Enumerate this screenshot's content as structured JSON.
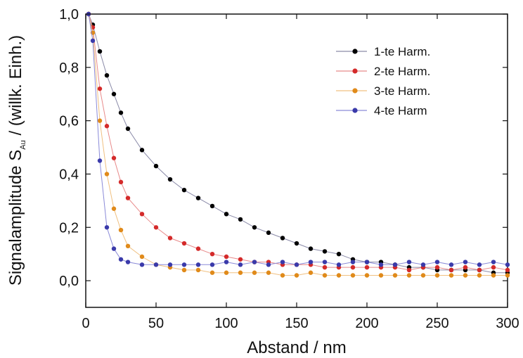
{
  "chart_data": {
    "type": "scatter",
    "title": "",
    "xlabel": "Abstand / nm",
    "ylabel_main": "Signalamplitude S",
    "ylabel_sub": "Au",
    "ylabel_rest": " / (willk. Einh.)",
    "xlim": [
      0,
      300
    ],
    "ylim": [
      -0.1,
      1.0
    ],
    "x_ticks": [
      {
        "value": 0,
        "label": "0"
      },
      {
        "value": 50,
        "label": "50"
      },
      {
        "value": 100,
        "label": "100"
      },
      {
        "value": 150,
        "label": "150"
      },
      {
        "value": 200,
        "label": "200"
      },
      {
        "value": 250,
        "label": "250"
      },
      {
        "value": 300,
        "label": "300"
      }
    ],
    "y_ticks": [
      {
        "value": 0.0,
        "label": "0,0"
      },
      {
        "value": 0.2,
        "label": "0,2"
      },
      {
        "value": 0.4,
        "label": "0,4"
      },
      {
        "value": 0.6,
        "label": "0,6"
      },
      {
        "value": 0.8,
        "label": "0,8"
      },
      {
        "value": 1.0,
        "label": "1,0"
      }
    ],
    "grid": false,
    "legend_position": "top-right",
    "series": [
      {
        "name": "1-te Harm.",
        "marker_color": "#000000",
        "line_color": "#8a8aa8",
        "x": [
          2,
          5,
          10,
          15,
          20,
          25,
          30,
          40,
          50,
          60,
          70,
          80,
          90,
          100,
          110,
          120,
          130,
          140,
          150,
          160,
          170,
          180,
          190,
          200,
          210,
          220,
          230,
          240,
          250,
          260,
          270,
          280,
          290,
          300
        ],
        "y": [
          1.0,
          0.96,
          0.86,
          0.77,
          0.7,
          0.63,
          0.57,
          0.49,
          0.43,
          0.38,
          0.34,
          0.31,
          0.28,
          0.25,
          0.23,
          0.2,
          0.18,
          0.16,
          0.14,
          0.12,
          0.11,
          0.1,
          0.08,
          0.07,
          0.07,
          0.06,
          0.05,
          0.05,
          0.04,
          0.04,
          0.04,
          0.04,
          0.03,
          0.03
        ]
      },
      {
        "name": "2-te Harm.",
        "marker_color": "#d42a2a",
        "line_color": "#e88a8a",
        "x": [
          2,
          5,
          10,
          15,
          20,
          25,
          30,
          40,
          50,
          60,
          70,
          80,
          90,
          100,
          110,
          120,
          130,
          140,
          150,
          160,
          170,
          180,
          190,
          200,
          210,
          220,
          230,
          240,
          250,
          260,
          270,
          280,
          290,
          300
        ],
        "y": [
          1.0,
          0.95,
          0.72,
          0.58,
          0.46,
          0.37,
          0.31,
          0.25,
          0.2,
          0.16,
          0.14,
          0.12,
          0.1,
          0.09,
          0.08,
          0.07,
          0.07,
          0.06,
          0.06,
          0.06,
          0.05,
          0.05,
          0.05,
          0.05,
          0.05,
          0.05,
          0.04,
          0.05,
          0.05,
          0.04,
          0.05,
          0.04,
          0.05,
          0.04
        ]
      },
      {
        "name": "3-te Harm.",
        "marker_color": "#e08a1a",
        "line_color": "#f0c080",
        "x": [
          2,
          5,
          10,
          15,
          20,
          25,
          30,
          40,
          50,
          60,
          70,
          80,
          90,
          100,
          110,
          120,
          130,
          140,
          150,
          160,
          170,
          180,
          190,
          200,
          210,
          220,
          230,
          240,
          250,
          260,
          270,
          280,
          290,
          300
        ],
        "y": [
          1.0,
          0.93,
          0.6,
          0.4,
          0.27,
          0.19,
          0.13,
          0.09,
          0.06,
          0.05,
          0.04,
          0.04,
          0.03,
          0.03,
          0.03,
          0.03,
          0.03,
          0.02,
          0.02,
          0.03,
          0.02,
          0.02,
          0.02,
          0.02,
          0.02,
          0.02,
          0.02,
          0.02,
          0.02,
          0.02,
          0.02,
          0.02,
          0.02,
          0.02
        ]
      },
      {
        "name": "4-te Harm",
        "marker_color": "#3a3aaa",
        "line_color": "#8a8ad8",
        "x": [
          2,
          5,
          10,
          15,
          20,
          25,
          30,
          40,
          50,
          60,
          70,
          80,
          90,
          100,
          110,
          120,
          130,
          140,
          150,
          160,
          170,
          180,
          190,
          200,
          210,
          220,
          230,
          240,
          250,
          260,
          270,
          280,
          290,
          300
        ],
        "y": [
          1.0,
          0.9,
          0.45,
          0.2,
          0.12,
          0.08,
          0.07,
          0.06,
          0.06,
          0.06,
          0.06,
          0.06,
          0.06,
          0.07,
          0.06,
          0.07,
          0.06,
          0.07,
          0.06,
          0.07,
          0.07,
          0.06,
          0.07,
          0.07,
          0.06,
          0.06,
          0.07,
          0.06,
          0.07,
          0.06,
          0.07,
          0.06,
          0.07,
          0.06
        ]
      }
    ]
  }
}
